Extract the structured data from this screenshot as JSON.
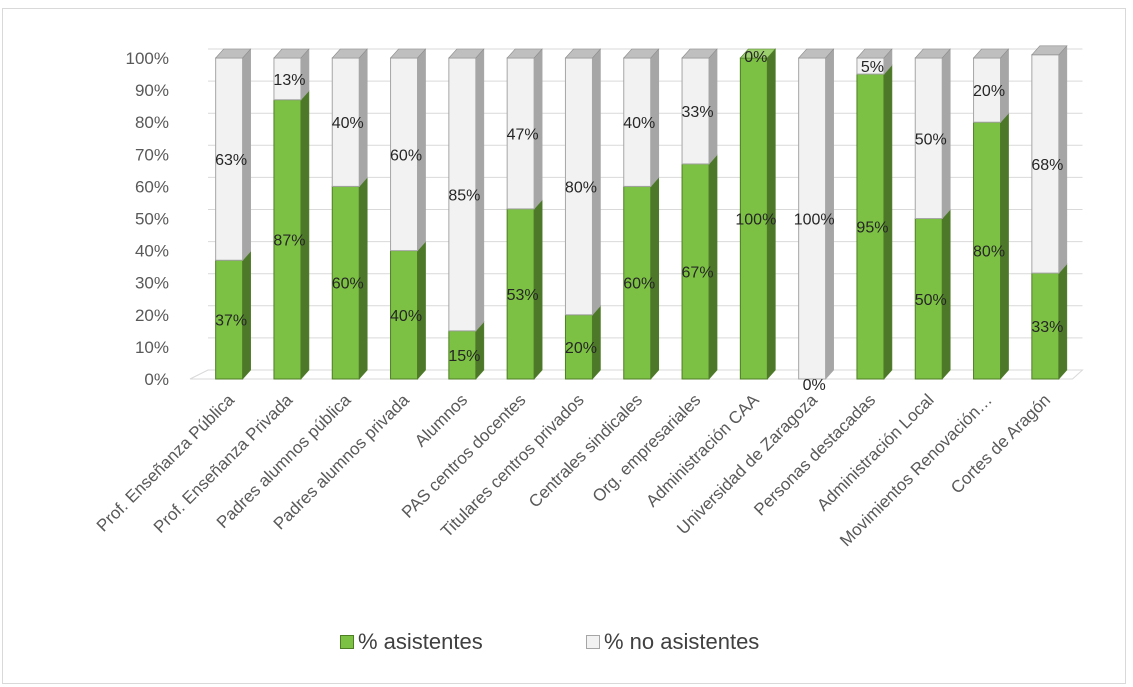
{
  "chart_data": {
    "type": "bar",
    "stacked": true,
    "percent_stacked": true,
    "three_d": true,
    "categories": [
      "Prof. Enseñanza Pública",
      "Prof. Enseñanza Privada",
      "Padres alumnos pública",
      "Padres alumnos privada",
      "Alumnos",
      "PAS centros docentes",
      "Titulares centros privados",
      "Centrales sindicales",
      "Org. empresariales",
      "Administración CAA",
      "Universidad de Zaragoza",
      "Personas destacadas",
      "Administración Local",
      "Movimientos Renovación…",
      "Cortes de Aragón"
    ],
    "series": [
      {
        "name": "% asistentes",
        "color": "#7cc144",
        "values": [
          37,
          87,
          60,
          40,
          15,
          53,
          20,
          60,
          67,
          100,
          0,
          95,
          50,
          80,
          33
        ],
        "labels": [
          "37%",
          "87%",
          "60%",
          "40%",
          "15%",
          "53%",
          "20%",
          "60%",
          "67%",
          "100%",
          "0%",
          "95%",
          "50%",
          "80%",
          "33%"
        ]
      },
      {
        "name": "% no asistentes",
        "color": "#f2f2f2",
        "values": [
          63,
          13,
          40,
          60,
          85,
          47,
          80,
          40,
          33,
          0,
          100,
          5,
          50,
          20,
          68
        ],
        "labels": [
          "63%",
          "13%",
          "40%",
          "60%",
          "85%",
          "47%",
          "80%",
          "40%",
          "33%",
          "0%",
          "100%",
          "5%",
          "50%",
          "20%",
          "68%"
        ]
      }
    ],
    "yticks": [
      "0%",
      "10%",
      "20%",
      "30%",
      "40%",
      "50%",
      "60%",
      "70%",
      "80%",
      "90%",
      "100%"
    ],
    "ylim": [
      0,
      100
    ],
    "grid": true,
    "legend_position": "bottom"
  }
}
